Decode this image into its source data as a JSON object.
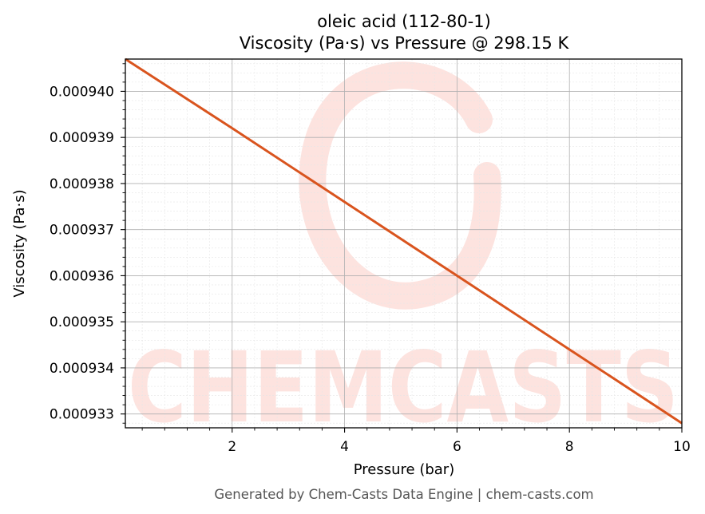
{
  "chart_data": {
    "type": "line",
    "title": "oleic acid (112-80-1)",
    "subtitle": "Viscosity (Pa·s) vs Pressure @ 298.15 K",
    "xlabel": "Pressure (bar)",
    "ylabel": "Viscosity (Pa·s)",
    "xlim": [
      0.1,
      10
    ],
    "ylim": [
      0.0009327,
      0.0009407
    ],
    "x_ticks": [
      2,
      4,
      6,
      8,
      10
    ],
    "x_tick_labels": [
      "2",
      "4",
      "6",
      "8",
      "10"
    ],
    "y_ticks": [
      0.000933,
      0.000934,
      0.000935,
      0.000936,
      0.000937,
      0.000938,
      0.000939,
      0.00094
    ],
    "y_tick_labels": [
      "0.000933",
      "0.000934",
      "0.000935",
      "0.000936",
      "0.000937",
      "0.000938",
      "0.000939",
      "0.000940"
    ],
    "grid": true,
    "series": [
      {
        "color": "#d9541e",
        "x": [
          0.1,
          2,
          4,
          6,
          8,
          10
        ],
        "y": [
          0.0009407,
          0.0009392,
          0.0009376,
          0.000936,
          0.0009344,
          0.0009328
        ]
      }
    ]
  },
  "watermark": {
    "text": "CHEMCASTS",
    "color": "#fde3df"
  },
  "footer": {
    "text": "Generated by Chem-Casts Data Engine | chem-casts.com"
  }
}
